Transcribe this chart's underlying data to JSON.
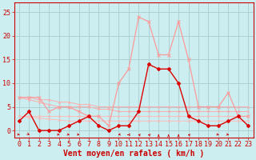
{
  "xlabel": "Vent moyen/en rafales ( km/h )",
  "background_color": "#cceef0",
  "grid_color": "#aacccc",
  "x_ticks": [
    0,
    1,
    2,
    3,
    4,
    5,
    6,
    7,
    8,
    9,
    10,
    11,
    12,
    13,
    14,
    15,
    16,
    17,
    18,
    19,
    20,
    21,
    22,
    23
  ],
  "y_ticks": [
    0,
    5,
    10,
    15,
    20,
    25
  ],
  "ylim": [
    -1.5,
    27
  ],
  "xlim": [
    -0.5,
    23.5
  ],
  "line_dark_x": [
    0,
    1,
    2,
    3,
    4,
    5,
    6,
    7,
    8,
    9,
    10,
    11,
    12,
    13,
    14,
    15,
    16,
    17,
    18,
    19,
    20,
    21,
    22,
    23
  ],
  "line_dark_y": [
    2,
    4,
    0,
    0,
    0,
    1,
    2,
    3,
    1,
    0,
    1,
    1,
    4,
    14,
    13,
    13,
    10,
    3,
    2,
    1,
    1,
    2,
    3,
    1
  ],
  "line_dark_color": "#dd0000",
  "line_rafales_x": [
    0,
    1,
    2,
    3,
    4,
    5,
    6,
    7,
    8,
    9,
    10,
    11,
    12,
    13,
    14,
    15,
    16,
    17,
    18,
    19,
    20,
    21,
    22,
    23
  ],
  "line_rafales_y": [
    7,
    7,
    7,
    4,
    5,
    5,
    4,
    3,
    3,
    1,
    10,
    13,
    24,
    23,
    16,
    16,
    23,
    15,
    5,
    5,
    5,
    8,
    3,
    3
  ],
  "line_rafales_color": "#ff9999",
  "line_trend1_x": [
    0,
    1,
    2,
    3,
    4,
    5,
    6,
    7,
    8,
    9,
    10,
    11,
    12,
    13,
    14,
    15,
    16,
    17,
    18,
    19,
    20,
    21,
    22,
    23
  ],
  "line_trend1_y": [
    7,
    7,
    6.5,
    6.5,
    6,
    6,
    5.5,
    5.5,
    5,
    5,
    5,
    5,
    5,
    5,
    5,
    5,
    5,
    5,
    5,
    5,
    5,
    5,
    5,
    5
  ],
  "line_trend1_color": "#ffaaaa",
  "line_trend2_x": [
    0,
    1,
    2,
    3,
    4,
    5,
    6,
    7,
    8,
    9,
    10,
    11,
    12,
    13,
    14,
    15,
    16,
    17,
    18,
    19,
    20,
    21,
    22,
    23
  ],
  "line_trend2_y": [
    7,
    6.5,
    6,
    5.5,
    5,
    5,
    5,
    5,
    4.5,
    4.5,
    4,
    4,
    4,
    4,
    4,
    4,
    4,
    4,
    4,
    4,
    4,
    4,
    4,
    4
  ],
  "line_trend2_color": "#ffaaaa",
  "line_trend3_x": [
    0,
    1,
    2,
    3,
    4,
    5,
    6,
    7,
    8,
    9,
    10,
    11,
    12,
    13,
    14,
    15,
    16,
    17,
    18,
    19,
    20,
    21,
    22,
    23
  ],
  "line_trend3_y": [
    3,
    3,
    3,
    3,
    3,
    3,
    3,
    3,
    3,
    3,
    3,
    3,
    3,
    3,
    3,
    3,
    3,
    3,
    3,
    3,
    3,
    3,
    3,
    3
  ],
  "line_trend3_color": "#ffbbbb",
  "line_trend4_x": [
    0,
    1,
    2,
    3,
    4,
    5,
    6,
    7,
    8,
    9,
    10,
    11,
    12,
    13,
    14,
    15,
    16,
    17,
    18,
    19,
    20,
    21,
    22,
    23
  ],
  "line_trend4_y": [
    3,
    2.8,
    2.6,
    2.4,
    2.2,
    2,
    2,
    2,
    2,
    2,
    2,
    2,
    2,
    2,
    2,
    2,
    2,
    2,
    2,
    2,
    2,
    2,
    2,
    2
  ],
  "line_trend4_color": "#ffbbbb",
  "marker_size": 2.5,
  "tick_fontsize": 6,
  "label_fontsize": 7,
  "wind_dirs": [
    225,
    202,
    999,
    999,
    225,
    225,
    225,
    999,
    999,
    999,
    135,
    90,
    45,
    45,
    0,
    0,
    0,
    45,
    999,
    999,
    225,
    225,
    999,
    999
  ]
}
